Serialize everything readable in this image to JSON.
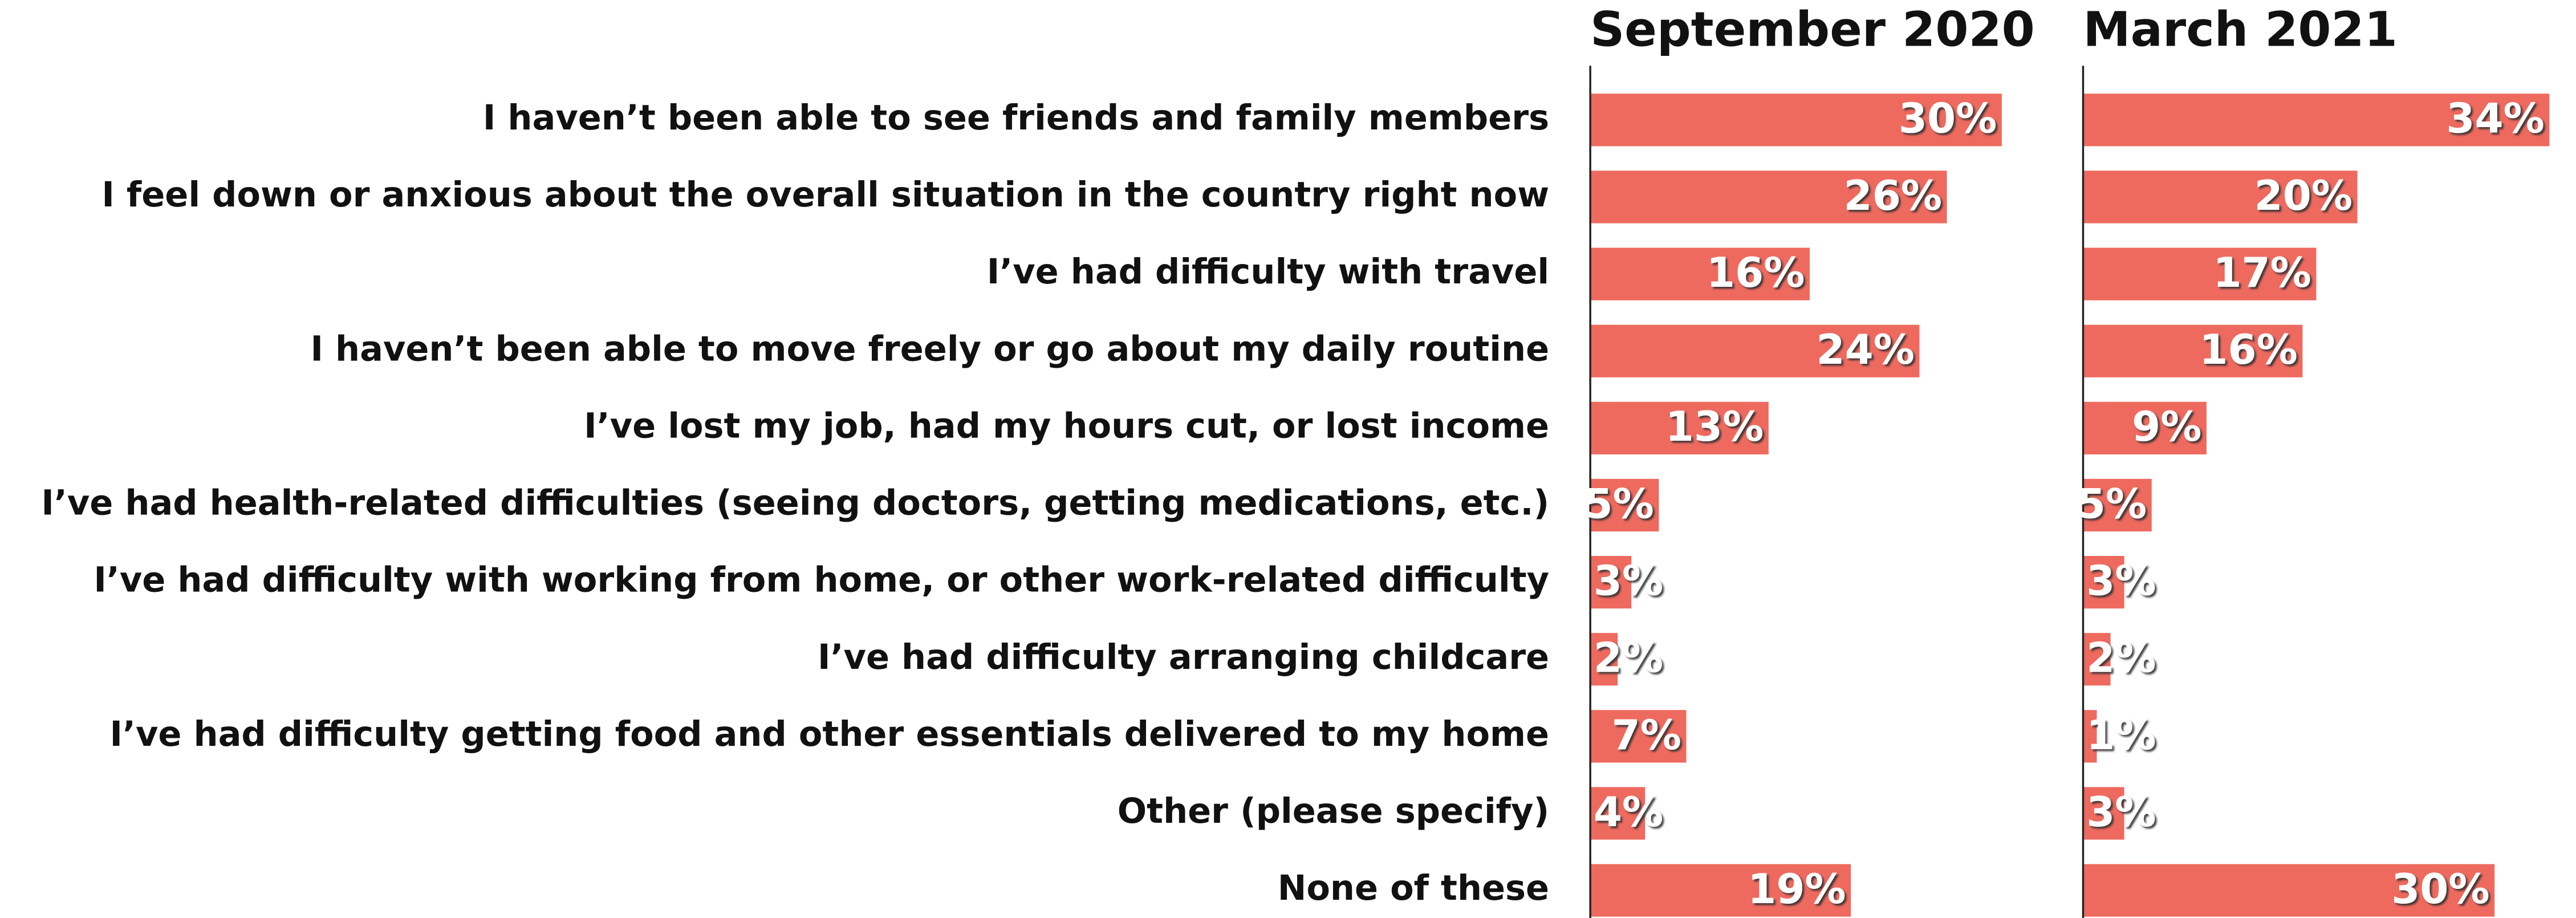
{
  "chart_data": {
    "type": "bar",
    "orientation": "horizontal",
    "color": "#ee6a5f",
    "categories": [
      "I haven’t been able to see friends and family members",
      "I feel down or anxious about the overall situation in the country right now",
      "I’ve had difficulty with travel",
      "I haven’t been able to move freely or go about my daily routine",
      "I’ve lost my job, had my hours cut, or lost income",
      "I’ve had health-related difficulties (seeing doctors, getting medications, etc.)",
      "I’ve had difficulty with working from home, or other work-related difficulty",
      "I’ve had difficulty arranging childcare",
      "I’ve had difficulty getting food and other essentials delivered to my home",
      "Other (please specify)",
      "None of these"
    ],
    "series": [
      {
        "name": "September 2020",
        "values": [
          30,
          26,
          16,
          24,
          13,
          5,
          3,
          2,
          7,
          4,
          19
        ],
        "value_labels": [
          "30%",
          "26%",
          "16%",
          "24%",
          "13%",
          "5%",
          "3%",
          "2%",
          "7%",
          "4%",
          "19%"
        ]
      },
      {
        "name": "March 2021",
        "values": [
          34,
          20,
          17,
          16,
          9,
          5,
          3,
          2,
          1,
          3,
          30
        ],
        "value_labels": [
          "34%",
          "20%",
          "17%",
          "16%",
          "9%",
          "5%",
          "3%",
          "2%",
          "1%",
          "3%",
          "30%"
        ]
      }
    ]
  }
}
